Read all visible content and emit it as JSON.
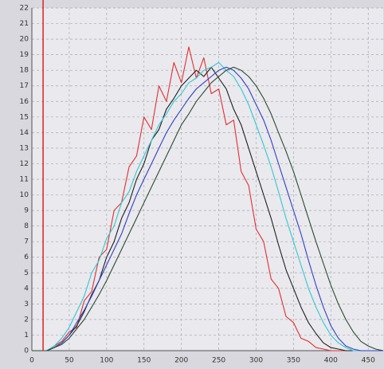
{
  "chart_data": {
    "type": "line",
    "x": [
      0,
      10,
      20,
      30,
      40,
      50,
      60,
      70,
      80,
      90,
      100,
      110,
      120,
      130,
      140,
      150,
      160,
      170,
      180,
      190,
      200,
      210,
      220,
      230,
      240,
      250,
      260,
      270,
      280,
      290,
      300,
      310,
      320,
      330,
      340,
      350,
      360,
      370,
      380,
      390,
      400,
      410,
      420,
      430,
      440,
      450,
      460,
      470
    ],
    "series": [
      {
        "color": "#e03030",
        "values": [
          0,
          0,
          0,
          0.3,
          0.6,
          1.2,
          1.5,
          3.2,
          3.8,
          6,
          6.5,
          9,
          9.5,
          11.8,
          12.5,
          15,
          14.2,
          17,
          16,
          18.5,
          17.2,
          19.5,
          17.5,
          18.8,
          16.5,
          16.8,
          14.5,
          14.8,
          11.5,
          10.6,
          7.8,
          7,
          4.6,
          4,
          2.2,
          1.8,
          0.8,
          0.6,
          0.2,
          0.1,
          0,
          0,
          0,
          0,
          0,
          0,
          0,
          0
        ]
      },
      {
        "color": "#202020",
        "values": [
          0,
          0,
          0,
          0.2,
          0.5,
          1,
          1.6,
          2.5,
          3.6,
          4.5,
          6,
          7,
          8.5,
          9.5,
          11,
          12,
          13.5,
          14.2,
          15.5,
          16.2,
          17,
          17.5,
          18,
          17.6,
          18.2,
          17.5,
          16.8,
          15.5,
          14.5,
          13,
          11.5,
          10,
          8.5,
          6.8,
          5.2,
          4,
          2.8,
          1.8,
          1.1,
          0.5,
          0.2,
          0.1,
          0,
          0,
          0,
          0,
          0,
          0
        ]
      },
      {
        "color": "#30c8d0",
        "values": [
          0,
          0,
          0,
          0.3,
          0.8,
          1.5,
          2.5,
          3.5,
          5,
          5.8,
          7.2,
          8,
          9.5,
          10.2,
          11.5,
          12.5,
          13.5,
          14.5,
          15.2,
          16,
          16.5,
          17.2,
          17.5,
          18,
          18.2,
          18.5,
          18,
          17.6,
          16.8,
          15.8,
          14.5,
          13.2,
          11.8,
          10.2,
          8.5,
          7,
          5.5,
          4,
          2.8,
          1.8,
          1,
          0.5,
          0.2,
          0,
          0,
          0,
          0,
          0
        ]
      },
      {
        "color": "#3040c0",
        "values": [
          0,
          0,
          0,
          0.2,
          0.5,
          1,
          1.8,
          2.6,
          3.5,
          4.5,
          5.5,
          6.5,
          7.5,
          8.8,
          10,
          11,
          12,
          13,
          14,
          14.8,
          15.5,
          16.2,
          16.8,
          17.2,
          17.6,
          18,
          18.2,
          18,
          17.5,
          16.8,
          15.8,
          14.8,
          13.5,
          12,
          10.5,
          9,
          7.5,
          5.8,
          4.2,
          2.8,
          1.6,
          0.8,
          0.3,
          0.1,
          0,
          0,
          0,
          0
        ]
      },
      {
        "color": "#2a4a30",
        "values": [
          0,
          0,
          0,
          0.2,
          0.4,
          0.8,
          1.4,
          2,
          2.8,
          3.6,
          4.5,
          5.5,
          6.5,
          7.5,
          8.5,
          9.5,
          10.5,
          11.5,
          12.5,
          13.5,
          14.5,
          15.2,
          16,
          16.6,
          17.2,
          17.6,
          18,
          18.2,
          18,
          17.6,
          17,
          16.2,
          15.2,
          14,
          12.8,
          11.5,
          10,
          8.5,
          7,
          5.6,
          4.2,
          3,
          2,
          1.2,
          0.6,
          0.3,
          0.1,
          0
        ]
      }
    ],
    "vlines": [
      {
        "x": 15,
        "color": "#e02020"
      }
    ],
    "xlim": [
      0,
      470
    ],
    "xticks": [
      0,
      50,
      100,
      150,
      200,
      250,
      300,
      350,
      400,
      450
    ],
    "ylim": [
      0,
      22
    ],
    "yticks": [
      0,
      1,
      2,
      3,
      4,
      5,
      6,
      7,
      8,
      9,
      10,
      11,
      12,
      13,
      14,
      15,
      16,
      17,
      18,
      19,
      20,
      21,
      22
    ],
    "grid": true
  }
}
